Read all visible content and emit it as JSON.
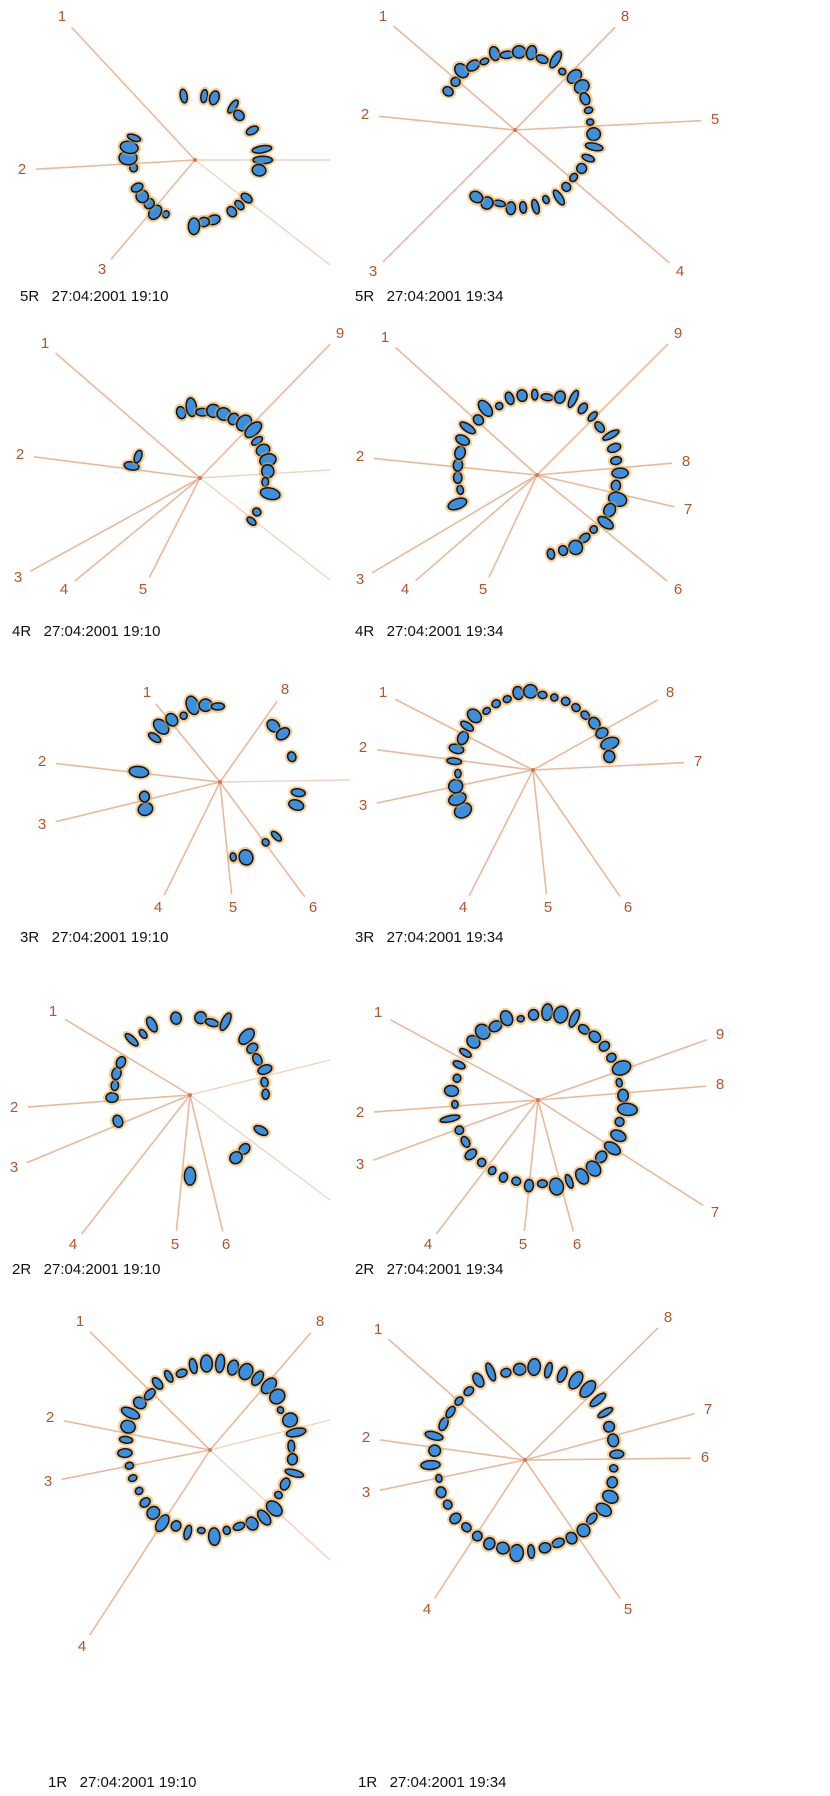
{
  "panels": [
    {
      "caption": "5R   27:04:2001 19:10",
      "labels": [
        "1",
        "2",
        "3"
      ]
    },
    {
      "caption": "5R   27:04:2001 19:34",
      "labels": [
        "1",
        "8",
        "5",
        "2",
        "3",
        "4"
      ]
    },
    {
      "caption": "4R   27:04:2001 19:10",
      "labels": [
        "1",
        "9",
        "2",
        "3",
        "4",
        "5"
      ]
    },
    {
      "caption": "4R   27:04:2001 19:34",
      "labels": [
        "1",
        "9",
        "2",
        "8",
        "7",
        "3",
        "4",
        "5",
        "6"
      ]
    },
    {
      "caption": "3R   27:04:2001 19:10",
      "labels": [
        "1",
        "8",
        "2",
        "3",
        "4",
        "5",
        "6"
      ]
    },
    {
      "caption": "3R   27:04:2001 19:34",
      "labels": [
        "1",
        "8",
        "2",
        "7",
        "3",
        "4",
        "5",
        "6"
      ]
    },
    {
      "caption": "2R   27:04:2001 19:10",
      "labels": [
        "1",
        "2",
        "3",
        "4",
        "5",
        "6"
      ]
    },
    {
      "caption": "2R   27:04:2001 19:34",
      "labels": [
        "1",
        "9",
        "2",
        "8",
        "3",
        "7",
        "4",
        "5",
        "6"
      ]
    },
    {
      "caption": "1R   27:04:2001 19:10",
      "labels": [
        "1",
        "8",
        "2",
        "3",
        "4"
      ]
    },
    {
      "caption": "1R   27:04:2001 19:34",
      "labels": [
        "1",
        "8",
        "7",
        "2",
        "6",
        "3",
        "4",
        "5"
      ]
    }
  ]
}
